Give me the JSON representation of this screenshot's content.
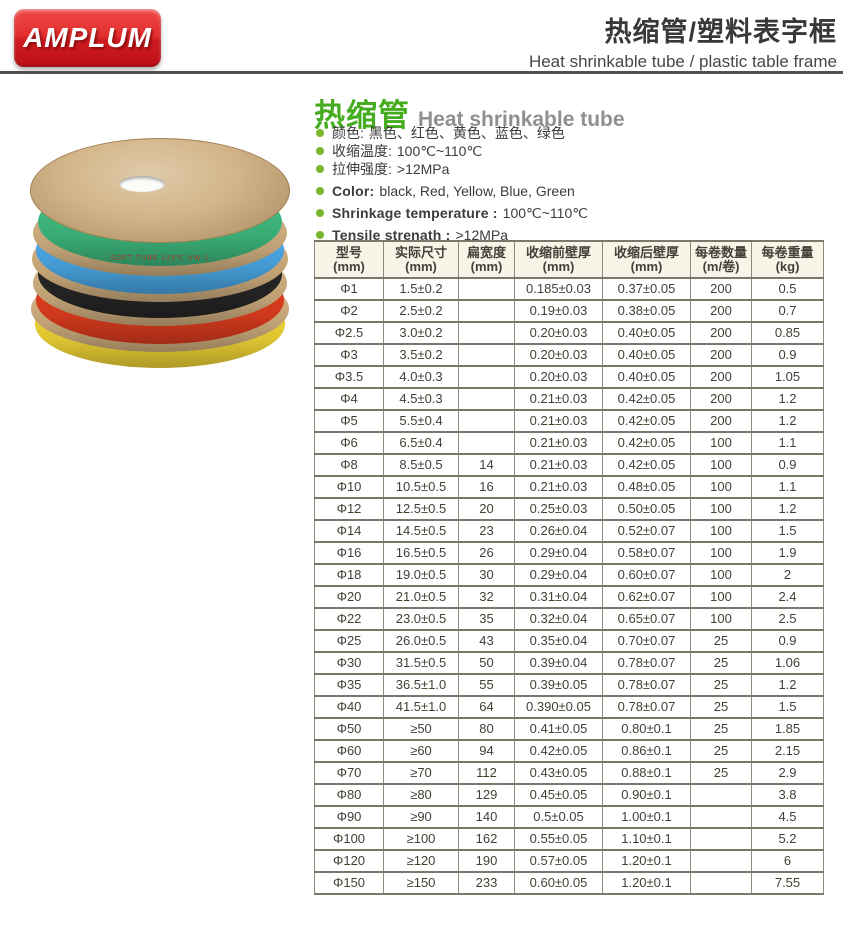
{
  "header": {
    "logo_text": "AMPLUM",
    "title_cn": "热缩管/塑料表字框",
    "title_en": "Heat shrinkable tube / plastic table frame"
  },
  "product": {
    "title_cn": "热缩管",
    "title_en": "Heat shrinkable tube",
    "bullets": [
      {
        "label": "颜色:",
        "value": "黑色、红色、黄色、蓝色、绿色",
        "bold": false
      },
      {
        "label": "收缩温度:",
        "value": "100℃~110℃",
        "bold": false
      },
      {
        "label": "拉伸强度:",
        "value": ">12MPa",
        "bold": false
      },
      {
        "label": "Color:",
        "value": "black, Red, Yellow, Blue, Green",
        "bold": true
      },
      {
        "label": "Shrinkage temperature :",
        "value": "100℃~110℃",
        "bold": true
      },
      {
        "label": "Tensile strenath :",
        "value": ">12MPa",
        "bold": true
      }
    ]
  },
  "photo": {
    "description": "Stack of five cardboard reels wound with heat shrinkable tube",
    "print_text": "SOFT TUBE 125℃ VW-1",
    "reel_colors": [
      {
        "name": "green",
        "hex": "#3eb87d"
      },
      {
        "name": "blue",
        "hex": "#4aa7e5"
      },
      {
        "name": "black",
        "hex": "#262626"
      },
      {
        "name": "red",
        "hex": "#df3d1e"
      },
      {
        "name": "yellow",
        "hex": "#f0d335"
      }
    ],
    "cardboard_hex": "#cfae7e"
  },
  "table": {
    "columns": [
      {
        "label": "型号",
        "unit": "(mm)"
      },
      {
        "label": "实际尺寸",
        "unit": "(mm)"
      },
      {
        "label": "扁宽度",
        "unit": "(mm)"
      },
      {
        "label": "收缩前壁厚",
        "unit": "(mm)"
      },
      {
        "label": "收缩后壁厚",
        "unit": "(mm)"
      },
      {
        "label": "每卷数量",
        "unit": "(m/卷)"
      },
      {
        "label": "每卷重量",
        "unit": "(kg)"
      }
    ],
    "rows": [
      [
        "Φ1",
        "1.5±0.2",
        "",
        "0.185±0.03",
        "0.37±0.05",
        "200",
        "0.5"
      ],
      [
        "Φ2",
        "2.5±0.2",
        "",
        "0.19±0.03",
        "0.38±0.05",
        "200",
        "0.7"
      ],
      [
        "Φ2.5",
        "3.0±0.2",
        "",
        "0.20±0.03",
        "0.40±0.05",
        "200",
        "0.85"
      ],
      [
        "Φ3",
        "3.5±0.2",
        "",
        "0.20±0.03",
        "0.40±0.05",
        "200",
        "0.9"
      ],
      [
        "Φ3.5",
        "4.0±0.3",
        "",
        "0.20±0.03",
        "0.40±0.05",
        "200",
        "1.05"
      ],
      [
        "Φ4",
        "4.5±0.3",
        "",
        "0.21±0.03",
        "0.42±0.05",
        "200",
        "1.2"
      ],
      [
        "Φ5",
        "5.5±0.4",
        "",
        "0.21±0.03",
        "0.42±0.05",
        "200",
        "1.2"
      ],
      [
        "Φ6",
        "6.5±0.4",
        "",
        "0.21±0.03",
        "0.42±0.05",
        "100",
        "1.1"
      ],
      [
        "Φ8",
        "8.5±0.5",
        "14",
        "0.21±0.03",
        "0.42±0.05",
        "100",
        "0.9"
      ],
      [
        "Φ10",
        "10.5±0.5",
        "16",
        "0.21±0.03",
        "0.48±0.05",
        "100",
        "1.1"
      ],
      [
        "Φ12",
        "12.5±0.5",
        "20",
        "0.25±0.03",
        "0.50±0.05",
        "100",
        "1.2"
      ],
      [
        "Φ14",
        "14.5±0.5",
        "23",
        "0.26±0.04",
        "0.52±0.07",
        "100",
        "1.5"
      ],
      [
        "Φ16",
        "16.5±0.5",
        "26",
        "0.29±0.04",
        "0.58±0.07",
        "100",
        "1.9"
      ],
      [
        "Φ18",
        "19.0±0.5",
        "30",
        "0.29±0.04",
        "0.60±0.07",
        "100",
        "2"
      ],
      [
        "Φ20",
        "21.0±0.5",
        "32",
        "0.31±0.04",
        "0.62±0.07",
        "100",
        "2.4"
      ],
      [
        "Φ22",
        "23.0±0.5",
        "35",
        "0.32±0.04",
        "0.65±0.07",
        "100",
        "2.5"
      ],
      [
        "Φ25",
        "26.0±0.5",
        "43",
        "0.35±0.04",
        "0.70±0.07",
        "25",
        "0.9"
      ],
      [
        "Φ30",
        "31.5±0.5",
        "50",
        "0.39±0.04",
        "0.78±0.07",
        "25",
        "1.06"
      ],
      [
        "Φ35",
        "36.5±1.0",
        "55",
        "0.39±0.05",
        "0.78±0.07",
        "25",
        "1.2"
      ],
      [
        "Φ40",
        "41.5±1.0",
        "64",
        "0.390±0.05",
        "0.78±0.07",
        "25",
        "1.5"
      ],
      [
        "Φ50",
        "≥50",
        "80",
        "0.41±0.05",
        "0.80±0.1",
        "25",
        "1.85"
      ],
      [
        "Φ60",
        "≥60",
        "94",
        "0.42±0.05",
        "0.86±0.1",
        "25",
        "2.15"
      ],
      [
        "Φ70",
        "≥70",
        "112",
        "0.43±0.05",
        "0.88±0.1",
        "25",
        "2.9"
      ],
      [
        "Φ80",
        "≥80",
        "129",
        "0.45±0.05",
        "0.90±0.1",
        "",
        "3.8"
      ],
      [
        "Φ90",
        "≥90",
        "140",
        "0.5±0.05",
        "1.00±0.1",
        "",
        "4.5"
      ],
      [
        "Φ100",
        "≥100",
        "162",
        "0.55±0.05",
        "1.10±0.1",
        "",
        "5.2"
      ],
      [
        "Φ120",
        "≥120",
        "190",
        "0.57±0.05",
        "1.20±0.1",
        "",
        "6"
      ],
      [
        "Φ150",
        "≥150",
        "233",
        "0.60±0.05",
        "1.20±0.1",
        "",
        "7.55"
      ]
    ]
  },
  "colors": {
    "brand_red": "#d31a21",
    "accent_green": "#45ac1f",
    "bullet_dot_green": "#79b62b",
    "table_header_bg": "#f7f4e8",
    "table_border": "#8d8a7a",
    "text_dark": "#3c3c3c"
  }
}
